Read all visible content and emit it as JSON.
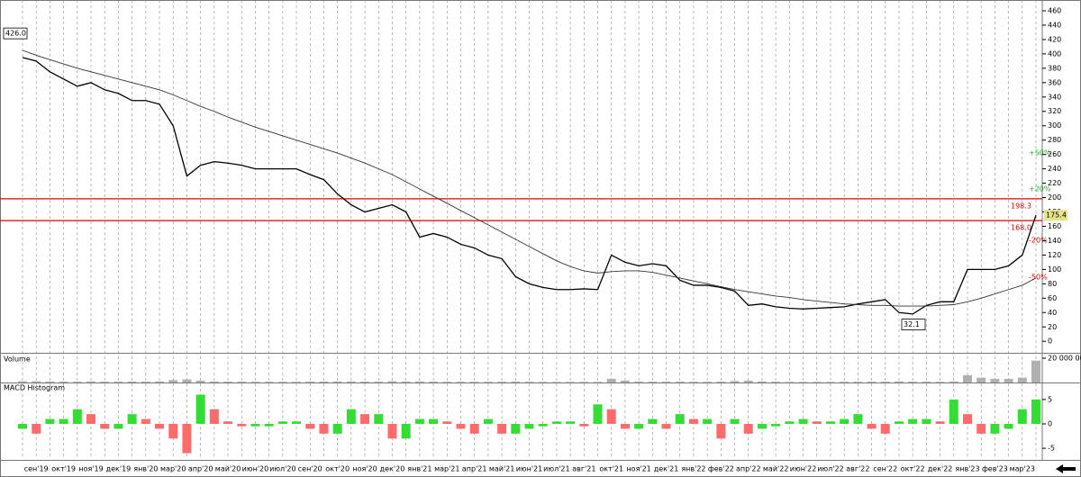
{
  "chart_data": [
    {
      "type": "line",
      "categories": [
        null,
        "сен'19",
        null,
        "окт'19",
        null,
        "ноя'19",
        null,
        "дек'19",
        null,
        "янв'20",
        null,
        "мар'20",
        null,
        "апр'20",
        null,
        "май'20",
        null,
        "июн'20",
        null,
        "июл'20",
        null,
        "сен'20",
        null,
        "окт'20",
        null,
        "ноя'20",
        null,
        "дек'20",
        null,
        "янв'21",
        null,
        "мар'21",
        null,
        "апр'21",
        null,
        "май'21",
        null,
        "июн'21",
        null,
        "июл'21",
        null,
        "авг'21",
        null,
        "окт'21",
        null,
        "ноя'21",
        null,
        "дек'21",
        null,
        "янв'22",
        null,
        "фев'22",
        null,
        "апр'22",
        null,
        "май'22",
        null,
        "июн'22",
        null,
        "июл'22",
        null,
        "авг'22",
        null,
        "сен'22",
        null,
        "окт'22",
        null,
        "дек'22",
        null,
        "янв'23",
        null,
        "фев'23",
        null,
        "мар'23",
        null
      ],
      "series": [
        {
          "color": "#000000",
          "values": [
            395,
            390,
            375,
            365,
            355,
            360,
            350,
            345,
            335,
            335,
            330,
            300,
            230,
            245,
            250,
            248,
            245,
            240,
            240,
            240,
            240,
            232,
            225,
            205,
            190,
            180,
            185,
            190,
            180,
            145,
            150,
            145,
            135,
            130,
            120,
            115,
            90,
            80,
            75,
            72,
            72,
            73,
            72,
            120,
            110,
            105,
            108,
            105,
            85,
            78,
            78,
            75,
            70,
            50,
            52,
            48,
            46,
            45,
            46,
            47,
            48,
            52,
            55,
            58,
            40,
            38,
            50,
            55,
            55,
            100,
            100,
            100,
            105,
            120,
            175.4
          ]
        },
        {
          "color": "#333333",
          "values": [
            405,
            398,
            392,
            386,
            380,
            375,
            370,
            365,
            360,
            355,
            350,
            343,
            335,
            327,
            320,
            312,
            305,
            298,
            292,
            286,
            280,
            274,
            268,
            262,
            255,
            248,
            240,
            232,
            222,
            212,
            202,
            192,
            182,
            172,
            162,
            152,
            142,
            132,
            122,
            112,
            104,
            98,
            95,
            97,
            98,
            98,
            96,
            92,
            88,
            84,
            80,
            76,
            72,
            69,
            66,
            63,
            61,
            58,
            56,
            54,
            52,
            51,
            50,
            50,
            49,
            49,
            49,
            50,
            51,
            55,
            60,
            66,
            72,
            78,
            88
          ]
        }
      ],
      "ylim": [
        -16,
        475
      ],
      "yticks": [
        0,
        20,
        40,
        60,
        80,
        100,
        120,
        140,
        160,
        180,
        200,
        220,
        240,
        260,
        280,
        300,
        320,
        340,
        360,
        380,
        400,
        420,
        440,
        460
      ],
      "grid": true,
      "max_label": {
        "value": 426,
        "label": "426.0"
      },
      "min_label": {
        "value": 32.1,
        "label": "32.1"
      },
      "last_label": {
        "value": 175.4,
        "label": "175.4"
      },
      "levels": [
        {
          "value": 198.3,
          "label": "198.3"
        },
        {
          "value": 168,
          "label": "168.0"
        }
      ],
      "level_color": "#e00000",
      "annotations": [
        "+50%",
        "+20%",
        "-20%",
        "-50%"
      ]
    },
    {
      "type": "bar",
      "title": "Volume",
      "values": [
        1000000,
        1000000,
        800000,
        800000,
        700000,
        900000,
        700000,
        700000,
        800000,
        700000,
        900000,
        2000000,
        2500000,
        1500000,
        900000,
        700000,
        700000,
        600000,
        600000,
        600000,
        600000,
        700000,
        800000,
        900000,
        900000,
        700000,
        700000,
        1000000,
        800000,
        900000,
        700000,
        600000,
        600000,
        600000,
        600000,
        600000,
        800000,
        600000,
        500000,
        500000,
        500000,
        500000,
        500000,
        3000000,
        1500000,
        800000,
        700000,
        700000,
        700000,
        600000,
        600000,
        700000,
        1200000,
        1500000,
        900000,
        700000,
        500000,
        500000,
        500000,
        500000,
        600000,
        600000,
        700000,
        700000,
        900000,
        700000,
        700000,
        600000,
        900000,
        6000000,
        4000000,
        3000000,
        3000000,
        4000000,
        18000000
      ],
      "color": "#b0b0b0",
      "ylim": [
        0,
        23700000
      ],
      "yticks": [
        {
          "value": 20000000,
          "label": "20 000 000"
        }
      ]
    },
    {
      "type": "bar",
      "title": "MACD Histogram",
      "values": [
        -1,
        -2,
        1,
        1,
        3,
        2,
        -1,
        -1,
        2,
        1,
        -1,
        -3,
        -6,
        6,
        3,
        0.5,
        -0.5,
        -0.5,
        -0.5,
        0.5,
        0.5,
        -1,
        -2,
        -2,
        3,
        2,
        2,
        -3,
        -3,
        1,
        1,
        0.5,
        -1,
        -2,
        1,
        -2,
        -2,
        -1,
        -0.5,
        0.5,
        0.5,
        -0.5,
        4,
        3,
        -1,
        -1,
        1,
        -1,
        2,
        1,
        1,
        -3,
        1,
        -2,
        -1,
        -0.5,
        0.5,
        1,
        0.5,
        0.5,
        1,
        2,
        -1,
        -2,
        0.5,
        1,
        1,
        0.5,
        5,
        2,
        -2,
        -2,
        -1,
        3,
        5
      ],
      "up_color": "#33dd33",
      "down_color": "#ff6a6a",
      "ylim": [
        -7.2,
        8.3
      ],
      "yticks": [
        -5,
        0,
        5
      ]
    }
  ]
}
